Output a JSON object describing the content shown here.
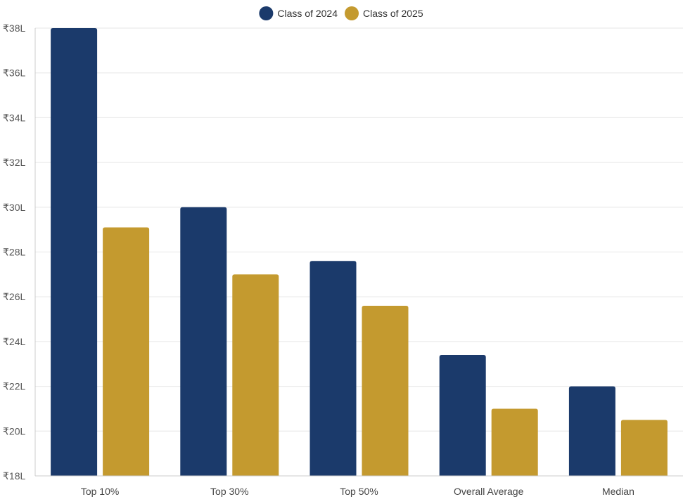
{
  "chart_data": {
    "type": "bar",
    "categories": [
      "Top 10%",
      "Top 30%",
      "Top 50%",
      "Overall Average",
      "Median"
    ],
    "series": [
      {
        "name": "Class of 2024",
        "color": "#1b3a6b",
        "values": [
          38,
          30,
          27.6,
          23.4,
          22
        ]
      },
      {
        "name": "Class of 2025",
        "color": "#c49a2f",
        "values": [
          29.1,
          27,
          25.6,
          21,
          20.5
        ]
      }
    ],
    "y_ticks": [
      18,
      20,
      22,
      24,
      26,
      28,
      30,
      32,
      34,
      36,
      38
    ],
    "y_tick_labels": [
      "₹18L",
      "₹20L",
      "₹22L",
      "₹24L",
      "₹26L",
      "₹28L",
      "₹30L",
      "₹32L",
      "₹34L",
      "₹36L",
      "₹38L"
    ],
    "ylim": [
      18,
      38
    ],
    "grid": true,
    "legend_position": "top-center"
  }
}
